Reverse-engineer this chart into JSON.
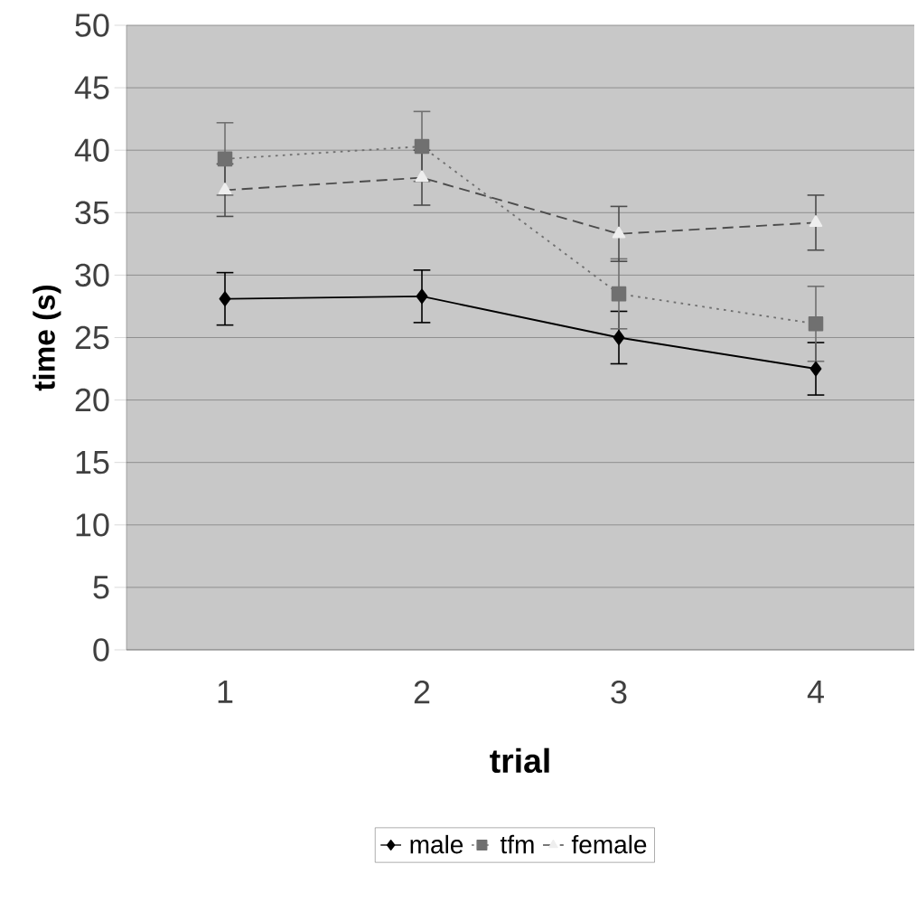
{
  "chart_data": {
    "type": "line",
    "xlabel": "trial",
    "ylabel": "time (s)",
    "categories": [
      "1",
      "2",
      "3",
      "4"
    ],
    "series": [
      {
        "name": "male",
        "color": "#000000",
        "marker": "diamond",
        "line_style": "solid",
        "values": [
          28.1,
          28.3,
          25.0,
          22.5
        ],
        "errors": [
          2.1,
          2.1,
          2.1,
          2.1
        ]
      },
      {
        "name": "tfm",
        "color": "#707070",
        "marker": "square",
        "line_style": "dotted",
        "values": [
          39.3,
          40.3,
          28.5,
          26.1
        ],
        "errors": [
          2.9,
          2.8,
          2.8,
          3.0
        ]
      },
      {
        "name": "female",
        "color": "#eeeeee",
        "marker": "triangle",
        "line_style": "dashed",
        "values": [
          36.8,
          37.8,
          33.3,
          34.2
        ],
        "errors": [
          2.1,
          2.2,
          2.2,
          2.2
        ]
      }
    ],
    "ylim": [
      0,
      50
    ],
    "yticks": [
      0,
      5,
      10,
      15,
      20,
      25,
      30,
      35,
      40,
      45,
      50
    ],
    "grid": "y",
    "legend": "bottom"
  }
}
